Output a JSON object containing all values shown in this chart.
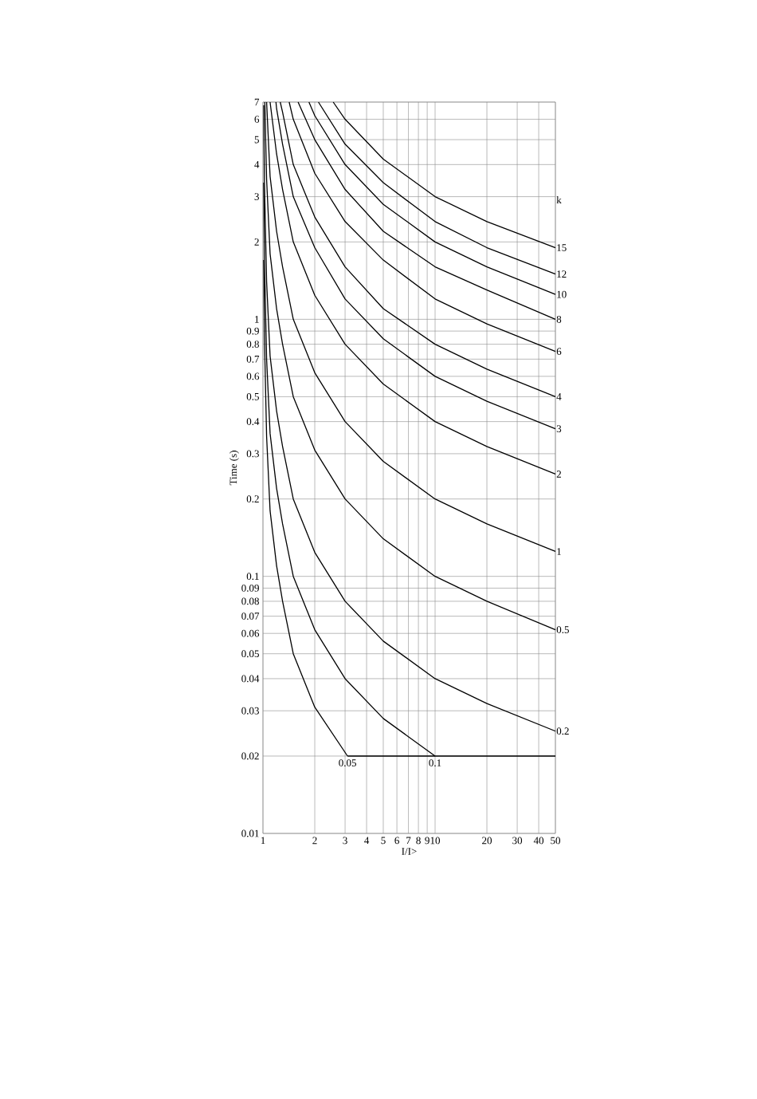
{
  "chart_data": {
    "type": "line",
    "xlabel": "I/I>",
    "ylabel": "Time (s)",
    "legend_title": "k",
    "log": "xy",
    "grid": true,
    "marker": "none",
    "line_style": "solid",
    "xlim": [
      1,
      50
    ],
    "ylim": [
      0.01,
      7
    ],
    "xticks": [
      1,
      2,
      3,
      4,
      5,
      6,
      7,
      8,
      9,
      10,
      20,
      30,
      40,
      50
    ],
    "yticks": [
      0.01,
      0.02,
      0.03,
      0.04,
      0.05,
      0.06,
      0.07,
      0.08,
      0.09,
      0.1,
      0.2,
      0.3,
      0.4,
      0.5,
      0.6,
      0.7,
      0.8,
      0.9,
      1,
      2,
      3,
      4,
      5,
      6,
      7
    ],
    "series": [
      {
        "name": "15",
        "color": "#000000",
        "x": [
          2.56,
          3,
          5,
          10,
          20,
          50
        ],
        "values": [
          7,
          6.0,
          4.2,
          3.0,
          2.4,
          1.9
        ]
      },
      {
        "name": "12",
        "color": "#000000",
        "x": [
          2.1,
          3,
          5,
          10,
          20,
          50
        ],
        "values": [
          7,
          4.8,
          3.4,
          2.4,
          1.9,
          1.5
        ]
      },
      {
        "name": "10",
        "color": "#000000",
        "x": [
          1.85,
          2,
          3,
          5,
          10,
          20,
          50
        ],
        "values": [
          7,
          6.2,
          4.0,
          2.8,
          2.0,
          1.6,
          1.25
        ]
      },
      {
        "name": "8",
        "color": "#000000",
        "x": [
          1.6,
          2,
          3,
          5,
          10,
          20,
          50
        ],
        "values": [
          7,
          5.0,
          3.2,
          2.2,
          1.6,
          1.3,
          1.0
        ]
      },
      {
        "name": "6",
        "color": "#000000",
        "x": [
          1.42,
          1.5,
          2,
          3,
          5,
          10,
          20,
          50
        ],
        "values": [
          7,
          6.0,
          3.7,
          2.4,
          1.7,
          1.2,
          0.96,
          0.75
        ]
      },
      {
        "name": "4",
        "color": "#000000",
        "x": [
          1.26,
          1.3,
          1.5,
          2,
          3,
          5,
          10,
          20,
          50
        ],
        "values": [
          7,
          6.4,
          4.0,
          2.5,
          1.6,
          1.1,
          0.8,
          0.64,
          0.5
        ]
      },
      {
        "name": "3",
        "color": "#000000",
        "x": [
          1.19,
          1.2,
          1.3,
          1.5,
          2,
          3,
          5,
          10,
          20,
          50
        ],
        "values": [
          7,
          6.6,
          4.8,
          3.0,
          1.9,
          1.2,
          0.84,
          0.6,
          0.48,
          0.375
        ]
      },
      {
        "name": "2",
        "color": "#000000",
        "x": [
          1.1,
          1.2,
          1.3,
          1.5,
          2,
          3,
          5,
          10,
          20,
          50
        ],
        "values": [
          7,
          4.4,
          3.2,
          2.0,
          1.24,
          0.8,
          0.56,
          0.4,
          0.32,
          0.25
        ]
      },
      {
        "name": "1",
        "color": "#000000",
        "x": [
          1.05,
          1.1,
          1.2,
          1.3,
          1.5,
          2,
          3,
          5,
          10,
          20,
          50
        ],
        "values": [
          7,
          3.6,
          2.2,
          1.6,
          1.0,
          0.62,
          0.4,
          0.28,
          0.2,
          0.16,
          0.125
        ]
      },
      {
        "name": "0.5",
        "color": "#000000",
        "x": [
          1.025,
          1.05,
          1.1,
          1.2,
          1.3,
          1.5,
          2,
          3,
          5,
          10,
          20,
          50
        ],
        "values": [
          7,
          3.5,
          1.8,
          1.1,
          0.8,
          0.5,
          0.31,
          0.2,
          0.14,
          0.1,
          0.08,
          0.062
        ]
      },
      {
        "name": "0.2",
        "color": "#000000",
        "x": [
          1.01,
          1.02,
          1.05,
          1.1,
          1.2,
          1.3,
          1.5,
          2,
          3,
          5,
          10,
          20,
          50
        ],
        "values": [
          6.8,
          3.4,
          1.4,
          0.72,
          0.44,
          0.32,
          0.2,
          0.124,
          0.08,
          0.056,
          0.04,
          0.032,
          0.025
        ]
      },
      {
        "name": "0.1",
        "color": "#000000",
        "x": [
          1.01,
          1.02,
          1.05,
          1.1,
          1.2,
          1.3,
          1.5,
          2,
          3,
          5,
          10
        ],
        "values": [
          3.4,
          1.7,
          0.7,
          0.36,
          0.22,
          0.16,
          0.1,
          0.062,
          0.04,
          0.028,
          0.02
        ]
      },
      {
        "name": "0.05",
        "color": "#000000",
        "x": [
          1.01,
          1.02,
          1.05,
          1.1,
          1.2,
          1.3,
          1.5,
          2,
          3.1
        ],
        "values": [
          1.7,
          0.85,
          0.35,
          0.18,
          0.11,
          0.08,
          0.05,
          0.031,
          0.02
        ]
      },
      {
        "color": "#000000",
        "x": [
          3.1,
          50
        ],
        "values": [
          0.02,
          0.02
        ]
      }
    ]
  }
}
